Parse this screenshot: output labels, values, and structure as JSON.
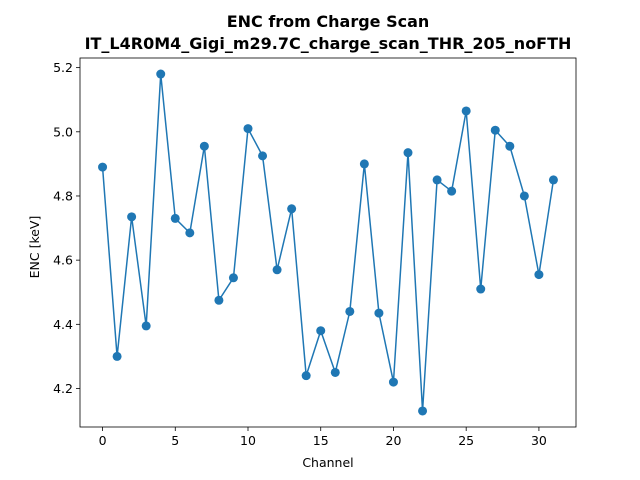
{
  "chart_data": {
    "type": "line",
    "title": "ENC from Charge Scan",
    "subtitle": "IT_L4R0M4_Gigi_m29.7C_charge_scan_THR_205_noFTH",
    "xlabel": "Channel",
    "ylabel": "ENC [keV]",
    "xlim": [
      -1.55,
      32.55
    ],
    "ylim": [
      4.08,
      5.23
    ],
    "xticks": [
      0,
      5,
      10,
      15,
      20,
      25,
      30
    ],
    "yticks": [
      4.2,
      4.4,
      4.6,
      4.8,
      5.0,
      5.2
    ],
    "xtick_labels": [
      "0",
      "5",
      "10",
      "15",
      "20",
      "25",
      "30"
    ],
    "ytick_labels": [
      "4.2",
      "4.4",
      "4.6",
      "4.8",
      "5.0",
      "5.2"
    ],
    "grid": false,
    "legend": "none",
    "color": "#1f77b4",
    "marker": "circle",
    "x": [
      0,
      1,
      2,
      3,
      4,
      5,
      6,
      7,
      8,
      9,
      10,
      11,
      12,
      13,
      14,
      15,
      16,
      17,
      18,
      19,
      20,
      21,
      22,
      23,
      24,
      25,
      26,
      27,
      28,
      29,
      30,
      31
    ],
    "y": [
      4.89,
      4.3,
      4.735,
      4.395,
      5.18,
      4.73,
      4.685,
      4.955,
      4.475,
      4.545,
      5.01,
      4.925,
      4.57,
      4.76,
      4.24,
      4.38,
      4.25,
      4.44,
      4.9,
      4.435,
      4.22,
      4.935,
      4.13,
      4.85,
      4.815,
      5.065,
      4.51,
      5.005,
      4.955,
      4.8,
      4.555,
      4.85
    ]
  }
}
